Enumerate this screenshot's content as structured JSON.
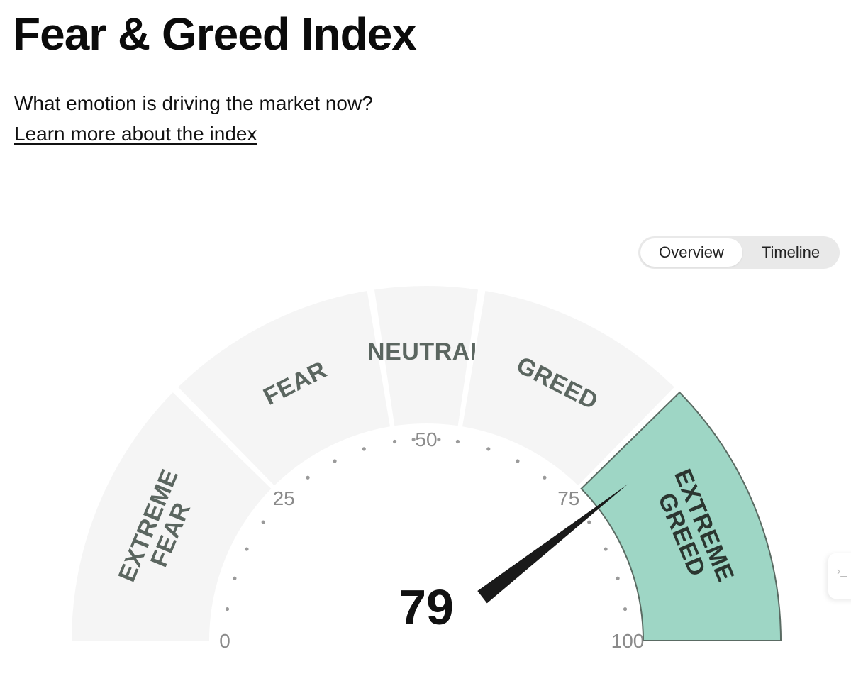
{
  "page": {
    "title": "Fear & Greed Index",
    "subtitle": "What emotion is driving the market now?",
    "learn_more_link": "Learn more about the index"
  },
  "view_toggle": {
    "options": [
      "Overview",
      "Timeline"
    ],
    "selected": "Overview"
  },
  "gauge": {
    "value": 79,
    "value_label": "79",
    "scale_min": 0,
    "scale_max": 100,
    "tick_labels": [
      "0",
      "25",
      "50",
      "75",
      "100"
    ],
    "segments": [
      {
        "lines": [
          "EXTREME",
          "FEAR"
        ],
        "from": 0,
        "to": 25
      },
      {
        "lines": [
          "FEAR"
        ],
        "from": 25,
        "to": 45
      },
      {
        "lines": [
          "NEUTRAL"
        ],
        "from": 45,
        "to": 55
      },
      {
        "lines": [
          "GREED"
        ],
        "from": 55,
        "to": 75
      },
      {
        "lines": [
          "EXTREME",
          "GREED"
        ],
        "from": 75,
        "to": 100
      }
    ],
    "active_segment": "EXTREME GREED",
    "colors": {
      "segment_fill": "#f5f5f5",
      "active_fill": "#9ed6c5",
      "active_stroke": "#5a6b63",
      "label": "#5b6660",
      "needle": "#1a1a1a"
    }
  },
  "edge_widget_glyph": "›_"
}
